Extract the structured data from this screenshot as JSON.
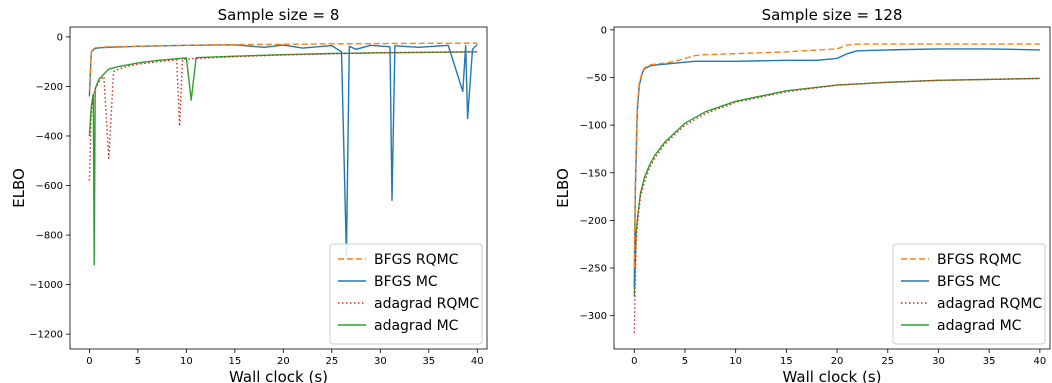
{
  "chart_data": [
    {
      "type": "line",
      "title": "Sample size = 8",
      "xlabel": "Wall clock (s)",
      "ylabel": "ELBO",
      "xlim": [
        -2,
        41
      ],
      "ylim": [
        -1260,
        40
      ],
      "xticks": [
        0,
        5,
        10,
        15,
        20,
        25,
        30,
        35,
        40
      ],
      "yticks": [
        -1200,
        -1000,
        -800,
        -600,
        -400,
        -200,
        0
      ],
      "legend_position": "lower right",
      "series": [
        {
          "name": "BFGS RQMC",
          "color": "#ff7f0e",
          "style": "dashed",
          "x": [
            0,
            0.2,
            0.5,
            1,
            2,
            5,
            10,
            15,
            20,
            25,
            30,
            35,
            40
          ],
          "y": [
            -220,
            -60,
            -45,
            -42,
            -40,
            -38,
            -34,
            -31,
            -30,
            -28,
            -27,
            -26,
            -25
          ]
        },
        {
          "name": "BFGS MC",
          "color": "#1f77b4",
          "style": "solid",
          "x": [
            0,
            0.2,
            0.5,
            1,
            2,
            5,
            10,
            15,
            18,
            20,
            22,
            25,
            26,
            26.5,
            26.8,
            27.5,
            29,
            31,
            31.2,
            31.5,
            34,
            37,
            38.5,
            38.8,
            39,
            39.5,
            40
          ],
          "y": [
            -240,
            -62,
            -48,
            -44,
            -42,
            -38,
            -34,
            -32,
            -42,
            -33,
            -45,
            -35,
            -60,
            -880,
            -38,
            -50,
            -34,
            -40,
            -660,
            -36,
            -42,
            -34,
            -220,
            -35,
            -330,
            -50,
            -30
          ]
        },
        {
          "name": "adagrad RQMC",
          "color": "#d62728",
          "style": "dotted",
          "x": [
            0,
            0.2,
            0.4,
            0.6,
            1,
            1.5,
            2,
            2.5,
            3,
            4,
            5,
            7,
            9,
            9.3,
            9.6,
            12,
            15,
            20,
            25,
            30,
            35,
            40
          ],
          "y": [
            -580,
            -310,
            -240,
            -210,
            -180,
            -160,
            -490,
            -140,
            -130,
            -118,
            -110,
            -100,
            -92,
            -360,
            -90,
            -85,
            -80,
            -73,
            -68,
            -64,
            -62,
            -60
          ]
        },
        {
          "name": "adagrad MC",
          "color": "#2ca02c",
          "style": "solid",
          "x": [
            0,
            0.2,
            0.4,
            0.5,
            0.6,
            1,
            1.5,
            2,
            3,
            5,
            7,
            10,
            10.5,
            11,
            15,
            20,
            25,
            30,
            35,
            40
          ],
          "y": [
            -400,
            -280,
            -230,
            -920,
            -210,
            -170,
            -150,
            -130,
            -120,
            -105,
            -95,
            -85,
            -255,
            -84,
            -78,
            -72,
            -67,
            -64,
            -62,
            -60
          ]
        }
      ]
    },
    {
      "type": "line",
      "title": "Sample size = 128",
      "xlabel": "Wall clock (s)",
      "ylabel": "ELBO",
      "xlim": [
        -2,
        41
      ],
      "ylim": [
        -335,
        3
      ],
      "xticks": [
        0,
        5,
        10,
        15,
        20,
        25,
        30,
        35,
        40
      ],
      "yticks": [
        -300,
        -250,
        -200,
        -150,
        -100,
        -50,
        0
      ],
      "legend_position": "lower right",
      "series": [
        {
          "name": "BFGS RQMC",
          "color": "#ff7f0e",
          "style": "dashed",
          "x": [
            0,
            0.1,
            0.3,
            0.5,
            0.8,
            1,
            1.5,
            2,
            3,
            4,
            5,
            6,
            7,
            10,
            15,
            20,
            21,
            22,
            25,
            30,
            35,
            40
          ],
          "y": [
            -250,
            -160,
            -80,
            -55,
            -44,
            -40,
            -37,
            -36,
            -35,
            -33,
            -30,
            -27,
            -26,
            -25,
            -23,
            -20,
            -16,
            -15,
            -15,
            -15,
            -15,
            -15
          ]
        },
        {
          "name": "BFGS MC",
          "color": "#1f77b4",
          "style": "solid",
          "x": [
            0,
            0.1,
            0.3,
            0.5,
            0.8,
            1,
            1.5,
            2,
            3,
            4,
            5,
            6,
            7,
            10,
            15,
            18,
            20,
            21,
            22,
            25,
            30,
            35,
            40
          ],
          "y": [
            -270,
            -170,
            -85,
            -58,
            -45,
            -41,
            -38,
            -37,
            -36,
            -35,
            -34,
            -33,
            -33,
            -33,
            -32,
            -32,
            -30,
            -25,
            -22,
            -21,
            -20,
            -20,
            -21
          ]
        },
        {
          "name": "adagrad RQMC",
          "color": "#d62728",
          "style": "dotted",
          "x": [
            0,
            0.1,
            0.2,
            0.4,
            0.6,
            1,
            1.5,
            2,
            3,
            4,
            5,
            7,
            10,
            15,
            20,
            25,
            30,
            35,
            40
          ],
          "y": [
            -318,
            -260,
            -220,
            -195,
            -175,
            -160,
            -145,
            -135,
            -120,
            -110,
            -100,
            -88,
            -76,
            -65,
            -58,
            -55,
            -53,
            -52,
            -51
          ]
        },
        {
          "name": "adagrad MC",
          "color": "#2ca02c",
          "style": "solid",
          "x": [
            0,
            0.1,
            0.2,
            0.4,
            0.6,
            1,
            1.5,
            2,
            3,
            4,
            5,
            7,
            10,
            15,
            20,
            25,
            30,
            35,
            40
          ],
          "y": [
            -280,
            -240,
            -210,
            -190,
            -172,
            -155,
            -142,
            -132,
            -118,
            -108,
            -98,
            -86,
            -75,
            -64,
            -58,
            -55,
            -53,
            -52,
            -51
          ]
        }
      ]
    }
  ]
}
